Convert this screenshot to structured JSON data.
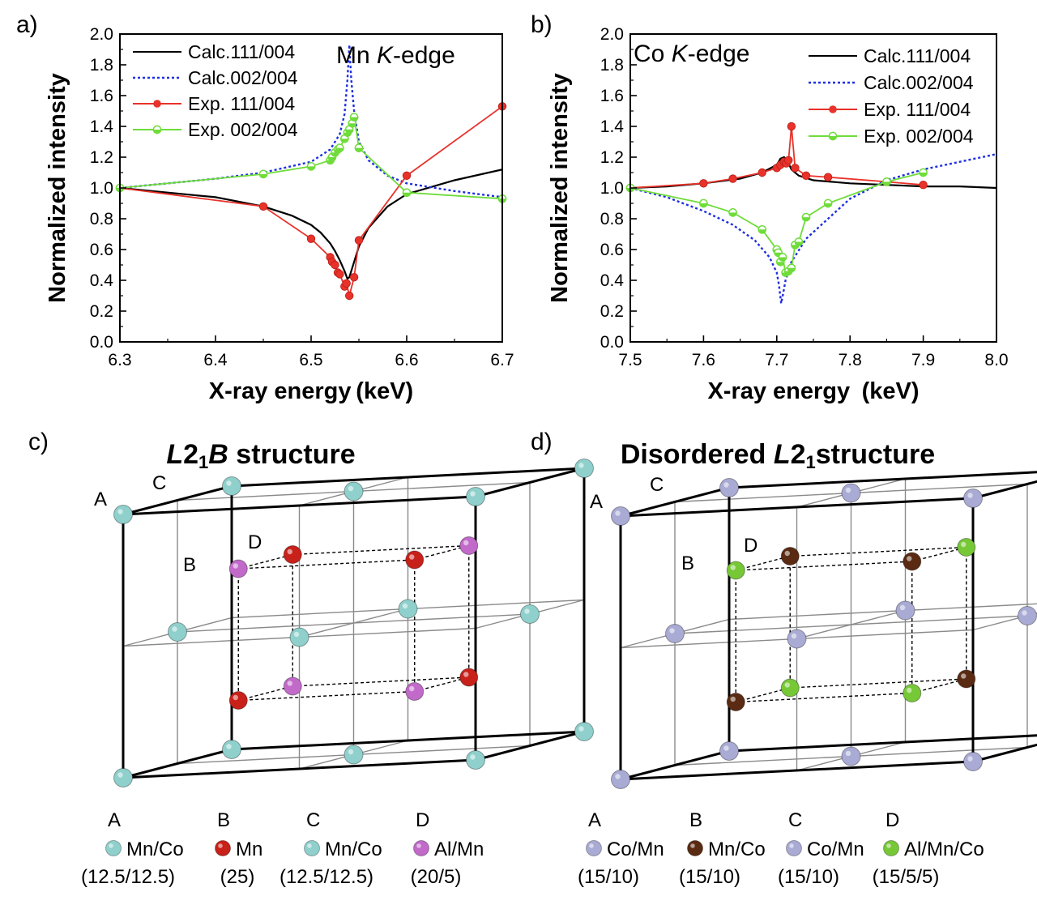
{
  "chart_data": [
    {
      "panel": "a)",
      "type": "line",
      "annotation": {
        "pre": "Mn ",
        "ital": "K",
        "post": "-edge"
      },
      "xlabel": "X-ray energy (keV)",
      "ylabel": "Normalized intensity",
      "xlim": [
        6.3,
        6.7
      ],
      "ylim": [
        0.0,
        2.0
      ],
      "xticks": [
        "6.3",
        "6.4",
        "6.5",
        "6.6",
        "6.7"
      ],
      "yticks": [
        "0.0",
        "0.2",
        "0.4",
        "0.6",
        "0.8",
        "1.0",
        "1.2",
        "1.4",
        "1.6",
        "1.8",
        "2.0"
      ],
      "legend_position": "top-left",
      "series": [
        {
          "name": "Calc.111/004",
          "color": "#000000",
          "style": "solid",
          "x": [
            6.3,
            6.35,
            6.4,
            6.45,
            6.48,
            6.5,
            6.51,
            6.52,
            6.525,
            6.53,
            6.535,
            6.538,
            6.54,
            6.545,
            6.55,
            6.56,
            6.58,
            6.6,
            6.65,
            6.7
          ],
          "y": [
            1.0,
            0.97,
            0.94,
            0.88,
            0.82,
            0.76,
            0.71,
            0.64,
            0.59,
            0.53,
            0.46,
            0.41,
            0.42,
            0.52,
            0.62,
            0.74,
            0.88,
            0.96,
            1.05,
            1.12
          ]
        },
        {
          "name": "Calc.002/004",
          "color": "#1e2fe0",
          "style": "dotted",
          "x": [
            6.3,
            6.35,
            6.4,
            6.45,
            6.5,
            6.52,
            6.53,
            6.535,
            6.538,
            6.54,
            6.542,
            6.545,
            6.55,
            6.56,
            6.58,
            6.6,
            6.65,
            6.7
          ],
          "y": [
            1.0,
            1.03,
            1.06,
            1.1,
            1.17,
            1.25,
            1.35,
            1.48,
            1.7,
            1.93,
            1.7,
            1.5,
            1.3,
            1.18,
            1.08,
            1.03,
            0.98,
            0.94
          ]
        },
        {
          "name": "Exp. 111/004",
          "color": "#e8322a",
          "style": "marker",
          "x": [
            6.3,
            6.45,
            6.5,
            6.52,
            6.522,
            6.525,
            6.528,
            6.53,
            6.535,
            6.537,
            6.54,
            6.545,
            6.55,
            6.6,
            6.7
          ],
          "y": [
            1.0,
            0.88,
            0.67,
            0.55,
            0.52,
            0.5,
            0.45,
            0.44,
            0.36,
            0.38,
            0.3,
            0.42,
            0.66,
            1.08,
            1.53
          ]
        },
        {
          "name": "Exp. 002/004",
          "color": "#6fdc3a",
          "style": "marker",
          "x": [
            6.3,
            6.45,
            6.5,
            6.52,
            6.522,
            6.525,
            6.528,
            6.53,
            6.535,
            6.538,
            6.54,
            6.543,
            6.545,
            6.55,
            6.6,
            6.7
          ],
          "y": [
            1.0,
            1.09,
            1.14,
            1.18,
            1.2,
            1.23,
            1.25,
            1.26,
            1.32,
            1.36,
            1.38,
            1.42,
            1.46,
            1.26,
            0.97,
            0.93
          ]
        }
      ]
    },
    {
      "panel": "b)",
      "type": "line",
      "annotation": {
        "pre": "Co ",
        "ital": "K",
        "post": "-edge"
      },
      "xlabel": "X-ray energy (keV)",
      "ylabel": "Normalized intensity",
      "xlim": [
        7.5,
        8.0
      ],
      "ylim": [
        0.0,
        2.0
      ],
      "xticks": [
        "7.5",
        "7.6",
        "7.7",
        "7.8",
        "7.9",
        "8.0"
      ],
      "yticks": [
        "0.0",
        "0.2",
        "0.4",
        "0.6",
        "0.8",
        "1.0",
        "1.2",
        "1.4",
        "1.6",
        "1.8",
        "2.0"
      ],
      "legend_position": "top-right",
      "series": [
        {
          "name": "Calc.111/004",
          "color": "#000000",
          "style": "solid",
          "x": [
            7.5,
            7.55,
            7.6,
            7.65,
            7.68,
            7.7,
            7.705,
            7.71,
            7.715,
            7.72,
            7.73,
            7.75,
            7.8,
            7.85,
            7.9,
            7.95,
            8.0
          ],
          "y": [
            1.0,
            1.01,
            1.03,
            1.06,
            1.1,
            1.15,
            1.19,
            1.2,
            1.17,
            1.12,
            1.08,
            1.05,
            1.03,
            1.02,
            1.01,
            1.01,
            1.0
          ]
        },
        {
          "name": "Calc.002/004",
          "color": "#1e2fe0",
          "style": "dotted",
          "x": [
            7.5,
            7.55,
            7.6,
            7.64,
            7.67,
            7.69,
            7.7,
            7.703,
            7.706,
            7.709,
            7.712,
            7.72,
            7.74,
            7.77,
            7.8,
            7.85,
            7.9,
            7.95,
            8.0
          ],
          "y": [
            1.0,
            0.94,
            0.85,
            0.76,
            0.66,
            0.55,
            0.45,
            0.37,
            0.25,
            0.32,
            0.4,
            0.52,
            0.67,
            0.8,
            0.93,
            1.05,
            1.12,
            1.17,
            1.22
          ]
        },
        {
          "name": "Exp. 111/004",
          "color": "#e8322a",
          "style": "marker",
          "x": [
            7.5,
            7.6,
            7.64,
            7.68,
            7.7,
            7.705,
            7.71,
            7.713,
            7.716,
            7.72,
            7.725,
            7.74,
            7.77,
            7.85,
            7.9
          ],
          "y": [
            1.0,
            1.03,
            1.06,
            1.1,
            1.13,
            1.15,
            1.17,
            1.16,
            1.18,
            1.4,
            1.13,
            1.08,
            1.07,
            1.04,
            1.02
          ]
        },
        {
          "name": "Exp. 002/004",
          "color": "#6fdc3a",
          "style": "marker",
          "x": [
            7.5,
            7.6,
            7.64,
            7.68,
            7.7,
            7.702,
            7.705,
            7.708,
            7.712,
            7.716,
            7.72,
            7.725,
            7.73,
            7.74,
            7.77,
            7.85,
            7.9
          ],
          "y": [
            1.0,
            0.9,
            0.84,
            0.73,
            0.6,
            0.58,
            0.52,
            0.55,
            0.45,
            0.46,
            0.48,
            0.63,
            0.65,
            0.81,
            0.9,
            1.04,
            1.1
          ]
        }
      ]
    }
  ],
  "structures": [
    {
      "panel": "c)",
      "title": {
        "ital1": "L",
        "main": "2",
        "sub": "1",
        "ital2": "B",
        "post": " structure"
      },
      "colors": {
        "frame": "#000000",
        "A": "#8fd0cc",
        "C": "#8fd0cc",
        "B": "#c8211a",
        "D": "#c16ac9"
      },
      "corner_labels": [
        "A",
        "B",
        "C",
        "D"
      ],
      "legend": [
        {
          "letter": "A",
          "name": "Mn/Co",
          "ratio": "(12.5/12.5)",
          "color": "#8fd0cc"
        },
        {
          "letter": "B",
          "name": "Mn",
          "ratio": "(25)",
          "color": "#c8211a"
        },
        {
          "letter": "C",
          "name": "Mn/Co",
          "ratio": "(12.5/12.5)",
          "color": "#8fd0cc"
        },
        {
          "letter": "D",
          "name": "Al/Mn",
          "ratio": "(20/5)",
          "color": "#c16ac9"
        }
      ]
    },
    {
      "panel": "d)",
      "title": {
        "pre": "Disordered ",
        "ital1": "L",
        "main": "2",
        "sub": "1",
        "post": "structure"
      },
      "colors": {
        "frame": "#000000",
        "A": "#a9abd4",
        "C": "#a9abd4",
        "B": "#5a2a12",
        "D": "#77c837"
      },
      "corner_labels": [
        "A",
        "B",
        "C",
        "D"
      ],
      "legend": [
        {
          "letter": "A",
          "name": "Co/Mn",
          "ratio": "(15/10)",
          "color": "#a9abd4"
        },
        {
          "letter": "B",
          "name": "Mn/Co",
          "ratio": "(15/10)",
          "color": "#5a2a12"
        },
        {
          "letter": "C",
          "name": "Co/Mn",
          "ratio": "(15/10)",
          "color": "#a9abd4"
        },
        {
          "letter": "D",
          "name": "Al/Mn/Co",
          "ratio": "(15/5/5)",
          "color": "#77c837"
        }
      ]
    }
  ]
}
